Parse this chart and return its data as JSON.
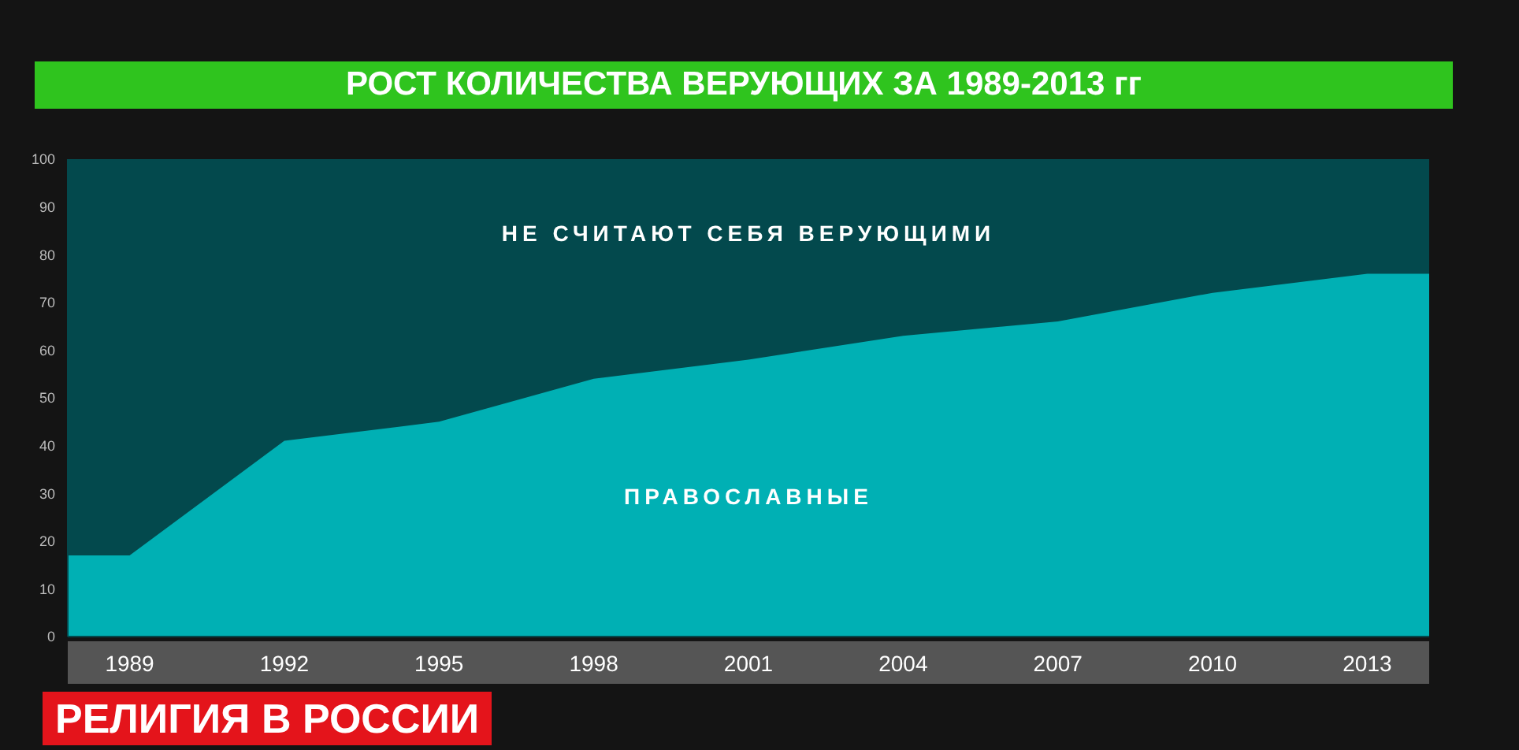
{
  "chart_data": {
    "type": "area",
    "title": "РОСТ КОЛИЧЕСТВА ВЕРУЮЩИХ ЗА 1989-2013 гг",
    "annotations": [
      "РЕЛИГИЯ В РОССИИ"
    ],
    "stacked": true,
    "legend": false,
    "grid": false,
    "x": [
      1987.8,
      1989,
      1992,
      1995,
      1998,
      2001,
      2004,
      2007,
      2010,
      2013,
      2014.2
    ],
    "xlim": [
      1987.8,
      2014.2
    ],
    "xticks": [
      1989,
      1992,
      1995,
      1998,
      2001,
      2004,
      2007,
      2010,
      2013
    ],
    "ylim": [
      0,
      100
    ],
    "yticks": [
      0,
      10,
      20,
      30,
      40,
      50,
      60,
      70,
      80,
      90,
      100
    ],
    "series": [
      {
        "name": "ПРАВОСЛАВНЫЕ",
        "color": "#00b0b4",
        "values": [
          17,
          17,
          41,
          45,
          54,
          58,
          63,
          66,
          72,
          76,
          76
        ]
      },
      {
        "name": "НЕ СЧИТАЮТ СЕБЯ ВЕРУЮЩИМИ",
        "color": "#03494d",
        "values": [
          83,
          83,
          59,
          55,
          46,
          42,
          37,
          34,
          28,
          24,
          24
        ]
      }
    ]
  }
}
